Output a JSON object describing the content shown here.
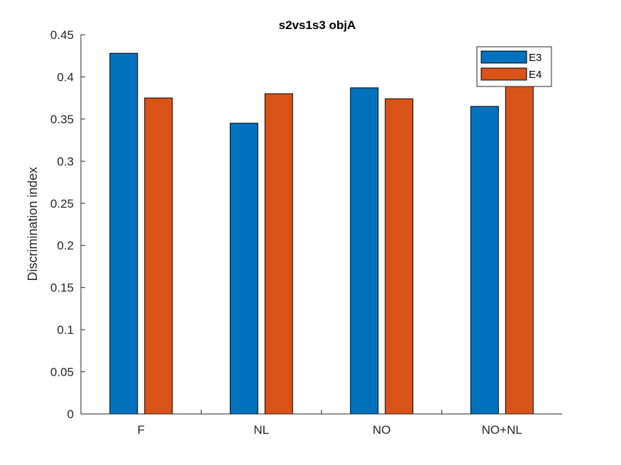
{
  "chart_data": {
    "type": "bar",
    "title": "s2vs1s3 objA",
    "xlabel": "",
    "ylabel": "Discrimination index",
    "categories": [
      "F",
      "NL",
      "NO",
      "NO+NL"
    ],
    "series": [
      {
        "name": "E3",
        "color": "#0072BD",
        "values": [
          0.428,
          0.345,
          0.387,
          0.365
        ]
      },
      {
        "name": "E4",
        "color": "#D95319",
        "values": [
          0.375,
          0.38,
          0.374,
          0.394
        ]
      }
    ],
    "ylim": [
      0,
      0.45
    ],
    "yticks": [
      0,
      0.05,
      0.1,
      0.15,
      0.2,
      0.25,
      0.3,
      0.35,
      0.4,
      0.45
    ],
    "ytick_labels": [
      "0",
      "0.05",
      "0.1",
      "0.15",
      "0.2",
      "0.25",
      "0.3",
      "0.35",
      "0.4",
      "0.45"
    ],
    "grid": false,
    "legend_position": "top-right"
  }
}
